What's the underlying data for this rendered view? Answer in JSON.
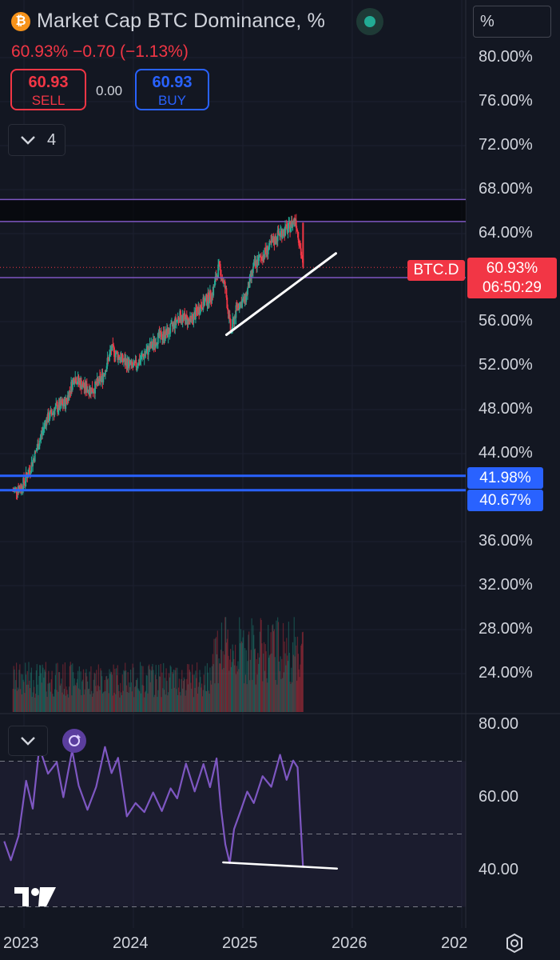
{
  "header": {
    "title": "Market Cap BTC Dominance, %",
    "quote": "60.93%  −0.70 (−1.13%)",
    "scale_button": "%"
  },
  "trade": {
    "sell_price": "60.93",
    "sell_label": "SELL",
    "spread": "0.00",
    "buy_price": "60.93",
    "buy_label": "BUY"
  },
  "indicators_toggle": {
    "count": "4"
  },
  "icons": [
    "bitcoin-icon",
    "live-status-icon",
    "chevron-down-icon",
    "tradingview-logo-icon",
    "settings-gear-icon",
    "rsi-replay-icon"
  ],
  "colors": {
    "bull": "#22ab94",
    "bear": "#f23645",
    "hline_blue": "#2962ff",
    "zone_purple": "#7e57c2",
    "rsi_line": "#7e57c2",
    "background": "#131722",
    "trendline": "#ffffff"
  },
  "tags": {
    "symbol": "BTC.D",
    "last_price": "60.93%",
    "countdown": "06:50:29",
    "level_1": "41.98%",
    "level_2": "40.67%"
  },
  "chart_data": [
    {
      "type": "candlestick",
      "title": "Market Cap BTC Dominance, %",
      "y_ticks": [
        "80.00%",
        "76.00%",
        "72.00%",
        "68.00%",
        "64.00%",
        "56.00%",
        "52.00%",
        "48.00%",
        "44.00%",
        "36.00%",
        "32.00%",
        "28.00%",
        "24.00%"
      ],
      "x_ticks": [
        "2023",
        "2024",
        "2025",
        "2026",
        "202"
      ],
      "ylim": [
        20.5,
        82
      ],
      "last_value": 60.93,
      "path_points": [
        {
          "t": 2022.9,
          "v": 40.6
        },
        {
          "t": 2022.98,
          "v": 41.0
        },
        {
          "t": 2023.05,
          "v": 42.5
        },
        {
          "t": 2023.12,
          "v": 44.5
        },
        {
          "t": 2023.2,
          "v": 47.0
        },
        {
          "t": 2023.28,
          "v": 48.0
        },
        {
          "t": 2023.38,
          "v": 48.6
        },
        {
          "t": 2023.46,
          "v": 51.0
        },
        {
          "t": 2023.55,
          "v": 50.0
        },
        {
          "t": 2023.63,
          "v": 49.8
        },
        {
          "t": 2023.72,
          "v": 51.0
        },
        {
          "t": 2023.8,
          "v": 53.5
        },
        {
          "t": 2023.9,
          "v": 52.5
        },
        {
          "t": 2024.0,
          "v": 51.8
        },
        {
          "t": 2024.1,
          "v": 53.0
        },
        {
          "t": 2024.22,
          "v": 54.5
        },
        {
          "t": 2024.32,
          "v": 55.0
        },
        {
          "t": 2024.42,
          "v": 56.5
        },
        {
          "t": 2024.52,
          "v": 56.0
        },
        {
          "t": 2024.62,
          "v": 57.5
        },
        {
          "t": 2024.72,
          "v": 58.5
        },
        {
          "t": 2024.78,
          "v": 61.0
        },
        {
          "t": 2024.84,
          "v": 59.0
        },
        {
          "t": 2024.89,
          "v": 55.0
        },
        {
          "t": 2024.95,
          "v": 57.5
        },
        {
          "t": 2025.02,
          "v": 58.0
        },
        {
          "t": 2025.1,
          "v": 61.0
        },
        {
          "t": 2025.18,
          "v": 62.0
        },
        {
          "t": 2025.26,
          "v": 63.0
        },
        {
          "t": 2025.33,
          "v": 64.0
        },
        {
          "t": 2025.42,
          "v": 64.5
        },
        {
          "t": 2025.48,
          "v": 65.4
        },
        {
          "t": 2025.52,
          "v": 63.0
        },
        {
          "t": 2025.55,
          "v": 60.93
        }
      ],
      "horizontal_levels": [
        {
          "value": 41.98,
          "color": "#2962ff"
        },
        {
          "value": 40.67,
          "color": "#2962ff"
        },
        {
          "value": 60.0,
          "color": "#7e57c2"
        }
      ],
      "zone": {
        "from": 65.1,
        "to": 67.1,
        "color": "#7e57c2"
      },
      "trendline": [
        {
          "t": 2024.85,
          "v": 54.8
        },
        {
          "t": 2025.85,
          "v": 62.2
        }
      ]
    },
    {
      "type": "bar",
      "series_name": "Volume",
      "note": "volume histogram drawn as translucent bars"
    },
    {
      "type": "line",
      "series_name": "RSI",
      "y_ticks": [
        "80.00",
        "60.00",
        "40.00"
      ],
      "ylim": [
        30,
        82
      ],
      "band": [
        30,
        70
      ],
      "midline": 50,
      "points": [
        {
          "t": 2022.82,
          "v": 48
        },
        {
          "t": 2022.88,
          "v": 42
        },
        {
          "t": 2022.95,
          "v": 50
        },
        {
          "t": 2023.02,
          "v": 64
        },
        {
          "t": 2023.08,
          "v": 56
        },
        {
          "t": 2023.14,
          "v": 73
        },
        {
          "t": 2023.22,
          "v": 68
        },
        {
          "t": 2023.3,
          "v": 70
        },
        {
          "t": 2023.36,
          "v": 60
        },
        {
          "t": 2023.44,
          "v": 74
        },
        {
          "t": 2023.5,
          "v": 62
        },
        {
          "t": 2023.58,
          "v": 58
        },
        {
          "t": 2023.66,
          "v": 63
        },
        {
          "t": 2023.74,
          "v": 73
        },
        {
          "t": 2023.8,
          "v": 66
        },
        {
          "t": 2023.86,
          "v": 71
        },
        {
          "t": 2023.94,
          "v": 55
        },
        {
          "t": 2024.02,
          "v": 60
        },
        {
          "t": 2024.1,
          "v": 56
        },
        {
          "t": 2024.18,
          "v": 62
        },
        {
          "t": 2024.26,
          "v": 57
        },
        {
          "t": 2024.34,
          "v": 64
        },
        {
          "t": 2024.4,
          "v": 59
        },
        {
          "t": 2024.48,
          "v": 68
        },
        {
          "t": 2024.56,
          "v": 62
        },
        {
          "t": 2024.64,
          "v": 70
        },
        {
          "t": 2024.7,
          "v": 63
        },
        {
          "t": 2024.76,
          "v": 72
        },
        {
          "t": 2024.8,
          "v": 58
        },
        {
          "t": 2024.84,
          "v": 48
        },
        {
          "t": 2024.88,
          "v": 42
        },
        {
          "t": 2024.92,
          "v": 50
        },
        {
          "t": 2024.98,
          "v": 56
        },
        {
          "t": 2025.04,
          "v": 63
        },
        {
          "t": 2025.1,
          "v": 60
        },
        {
          "t": 2025.18,
          "v": 67
        },
        {
          "t": 2025.26,
          "v": 64
        },
        {
          "t": 2025.34,
          "v": 71
        },
        {
          "t": 2025.4,
          "v": 66
        },
        {
          "t": 2025.46,
          "v": 71
        },
        {
          "t": 2025.5,
          "v": 68
        },
        {
          "t": 2025.55,
          "v": 41
        }
      ],
      "divergence_line": [
        {
          "t": 2024.82,
          "v": 42.2
        },
        {
          "t": 2025.86,
          "v": 40.5
        }
      ]
    }
  ]
}
